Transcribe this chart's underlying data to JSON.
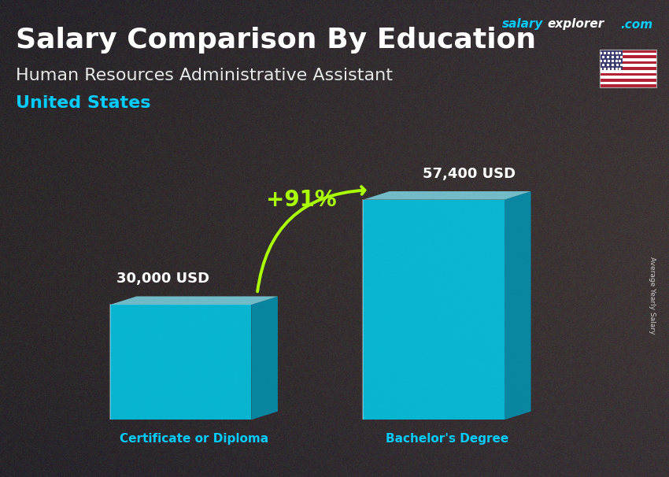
{
  "title_main": "Salary Comparison By Education",
  "title_sub": "Human Resources Administrative Assistant",
  "title_country": "United States",
  "watermark_salary": "salary",
  "watermark_explorer": "explorer",
  "watermark_com": ".com",
  "ylabel_rotated": "Average Yearly Salary",
  "categories": [
    "Certificate or Diploma",
    "Bachelor's Degree"
  ],
  "values": [
    30000,
    57400
  ],
  "value_labels": [
    "30,000 USD",
    "57,400 USD"
  ],
  "pct_label": "+91%",
  "bar_face_color": "#00d4f5",
  "bar_side_color": "#0099bb",
  "bar_top_color": "#88eeff",
  "bar_alpha": 0.82,
  "title_color": "#ffffff",
  "subtitle_color": "#e8e8e8",
  "country_color": "#00ccff",
  "label_color": "#ffffff",
  "xlabel_color": "#00ccff",
  "pct_color": "#aaff00",
  "arrow_color": "#aaff00",
  "watermark_color1": "#00ccff",
  "watermark_color2": "#ffffff",
  "watermark_color3": "#00ccff",
  "figsize": [
    8.5,
    6.06
  ],
  "dpi": 100,
  "bg_noise_seed": 42
}
